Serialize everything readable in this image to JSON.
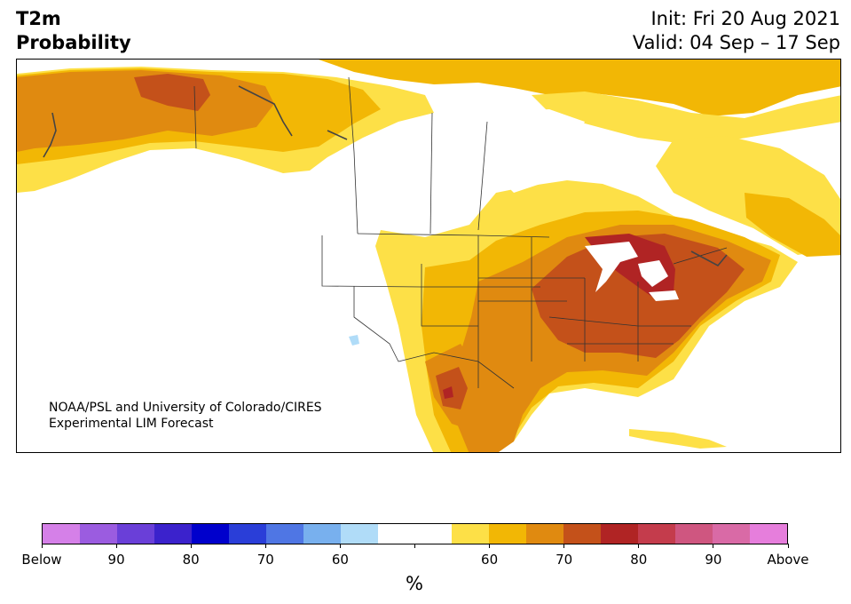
{
  "title": {
    "line1": "T2m",
    "line2": "Probability",
    "init": "Init: Fri 20 Aug 2021",
    "valid": "Valid: 04 Sep – 17 Sep"
  },
  "credit": {
    "line1": "NOAA/PSL and University of Colorado/CIRES",
    "line2": "Experimental LIM Forecast"
  },
  "colorbar": {
    "unit": "%",
    "colors": [
      "#d580e8",
      "#9b5ce0",
      "#6a3fd8",
      "#3b22cc",
      "#0000cc",
      "#2a3ed8",
      "#4f76e4",
      "#78b0ee",
      "#b0dcf8",
      "#ffffff",
      "#ffffff",
      "#fde047",
      "#f2b705",
      "#e08a10",
      "#c4511a",
      "#b02424",
      "#c43c4c",
      "#cf5680",
      "#d96aa6",
      "#e67edc"
    ],
    "tick_labels": [
      "Below",
      "90",
      "80",
      "70",
      "60",
      "",
      "60",
      "70",
      "80",
      "90",
      "Above"
    ]
  },
  "palette": {
    "p55": "#fde047",
    "p60": "#f2b705",
    "p65": "#e08a10",
    "p70": "#c4511a",
    "p75": "#b02424",
    "below60": "#b0dcf8"
  }
}
